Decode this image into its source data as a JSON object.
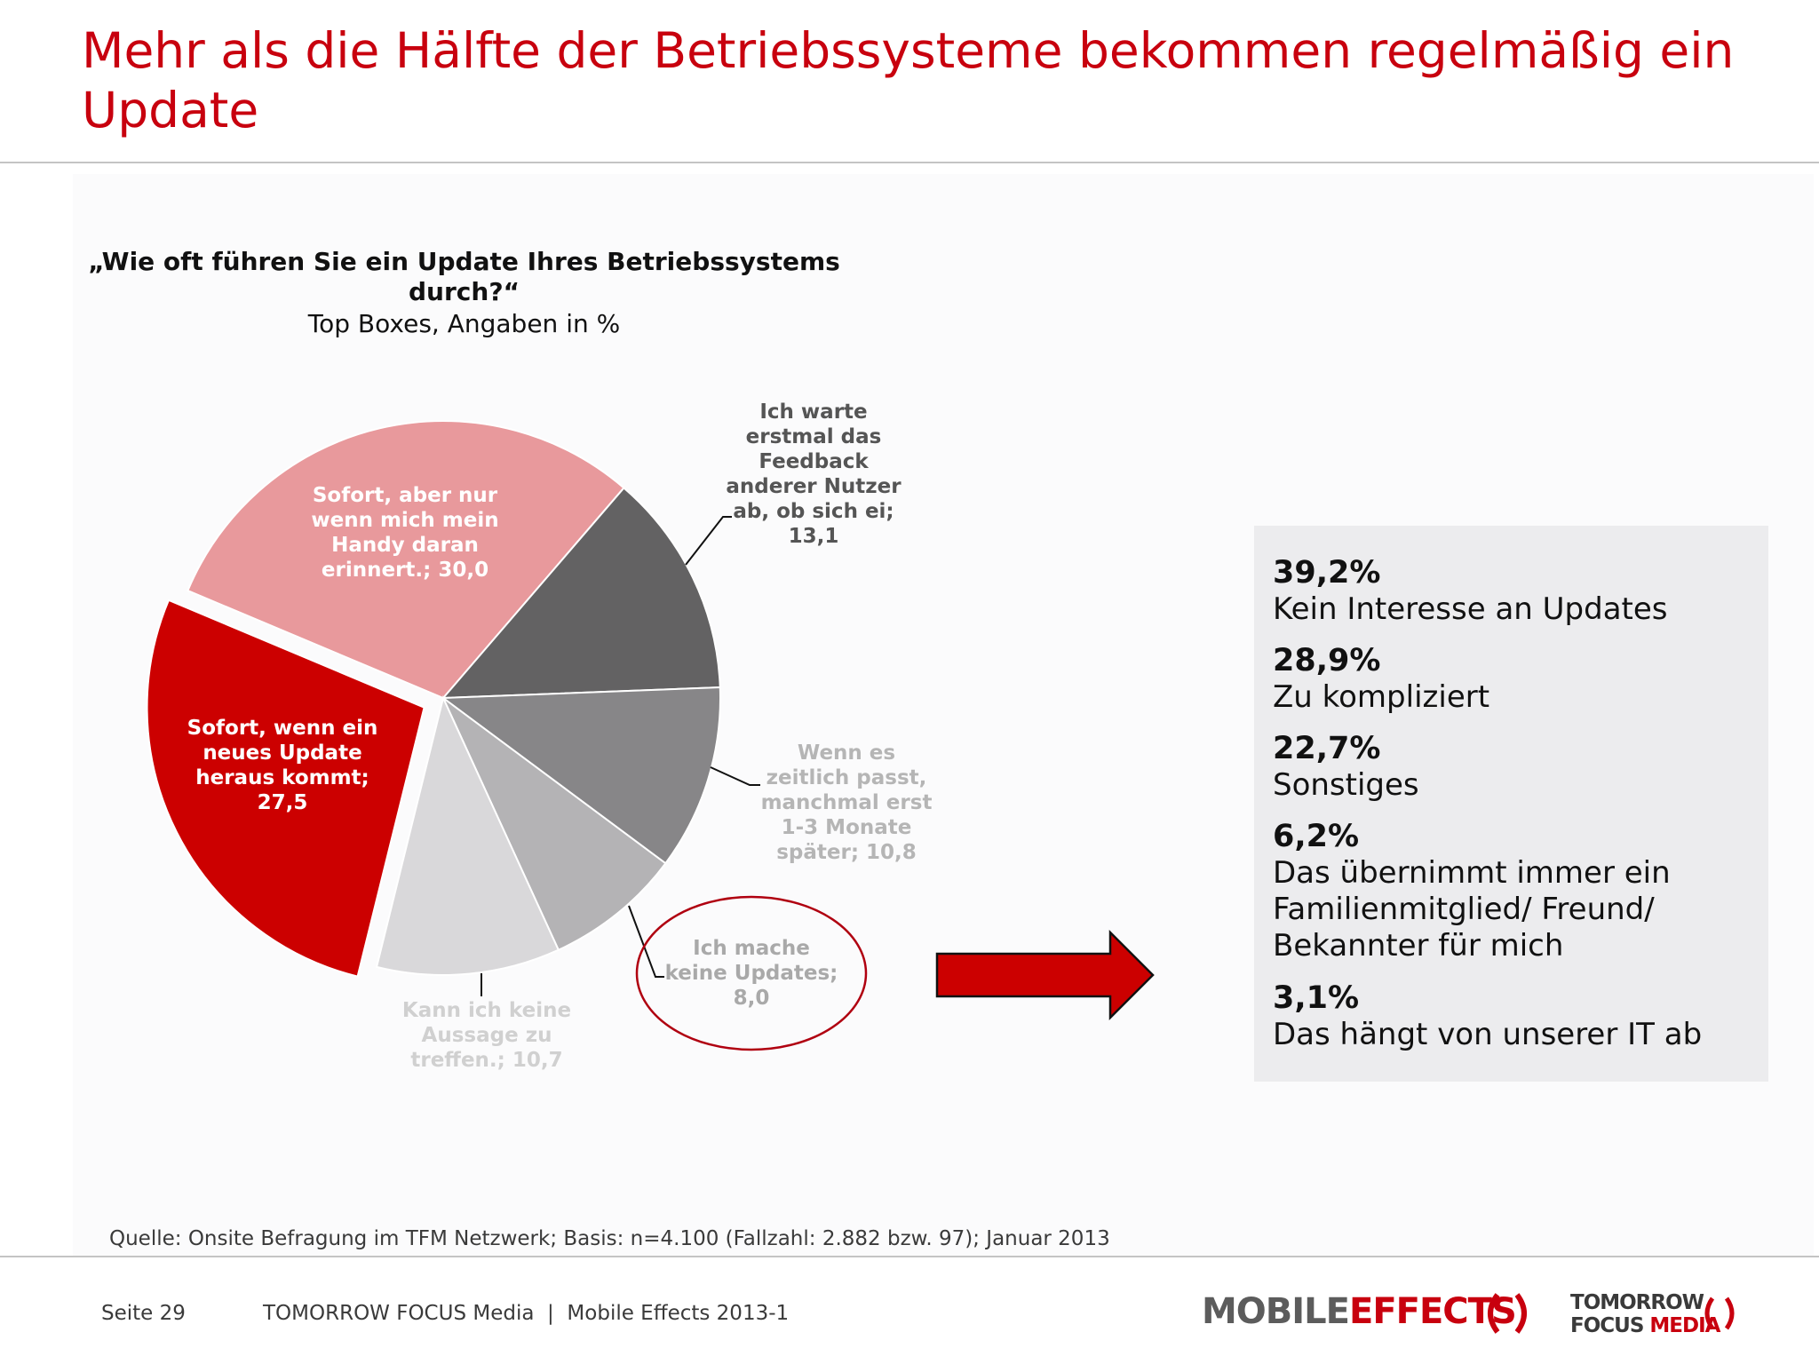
{
  "slide": {
    "title": "Mehr als die Hälfte der Betriebssysteme bekommen regelmäßig ein Update"
  },
  "chart_data": {
    "type": "pie",
    "title": "„Wie oft führen Sie ein Update Ihres Betriebssystems durch?“",
    "subtitle": "Top Boxes, Angaben in %",
    "slices": [
      {
        "label": "Sofort, aber nur wenn mich mein Handy daran erinnert.; 30,0",
        "value": 30.0,
        "color": "#e8999c",
        "exploded": false
      },
      {
        "label": "Ich warte erstmal das Feedback anderer Nutzer ab, ob sich ei; 13,1",
        "value": 13.1,
        "color": "#636263",
        "exploded": false
      },
      {
        "label": "Wenn es zeitlich passt, manchmal erst 1-3 Monate später; 10,8",
        "value": 10.8,
        "color": "#878688",
        "exploded": false
      },
      {
        "label": "Ich mache keine Updates; 8,0",
        "value": 8.0,
        "color": "#b4b3b5",
        "exploded": false
      },
      {
        "label": "Kann ich keine Aussage zu treffen.; 10,7",
        "value": 10.7,
        "color": "#d9d8da",
        "exploded": false
      },
      {
        "label": "Sofort, wenn ein neues Update heraus kommt; 27,5",
        "value": 27.5,
        "color": "#cc0000",
        "exploded": true
      }
    ],
    "highlighted_slice": "Ich mache keine Updates; 8,0"
  },
  "reasons": [
    {
      "pct": "39,2%",
      "text": "Kein Interesse an Updates"
    },
    {
      "pct": "28,9%",
      "text": "Zu kompliziert"
    },
    {
      "pct": "22,7%",
      "text": "Sonstiges"
    },
    {
      "pct": "6,2%",
      "text": "Das übernimmt immer ein Familienmitglied/ Freund/ Bekannter für mich"
    },
    {
      "pct": "3,1%",
      "text": "Das hängt von unserer IT ab"
    }
  ],
  "source": "Quelle: Onsite Befragung im TFM Netzwerk; Basis: n=4.100 (Fallzahl: 2.882 bzw. 97); Januar 2013",
  "footer": {
    "page": "Seite 29",
    "meta": "TOMORROW FOCUS Media  |  Mobile Effects 2013-1"
  },
  "logos": {
    "mobile": "MOBILE",
    "effects": "EFFECTS",
    "tfm_line1": "TOMORROW",
    "tfm_line2a": "FOCUS",
    "tfm_line2b": "MEDIA"
  }
}
